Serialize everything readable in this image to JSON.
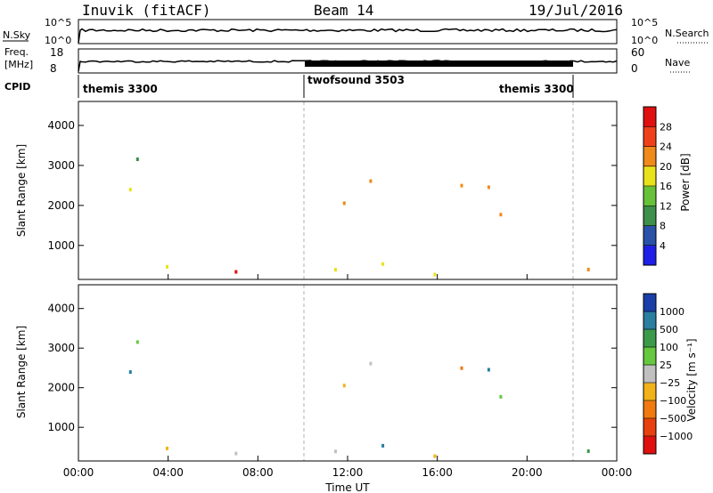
{
  "header": {
    "station": "Inuvik (fitACF)",
    "beam": "Beam 14",
    "date": "19/Jul/2016"
  },
  "top_panel": {
    "left_label": "N.Sky",
    "right_label": "N.Search",
    "left_ticks": [
      "10^5",
      "10^0"
    ],
    "right_ticks": [
      "10^5",
      "10^0"
    ]
  },
  "freq_panel": {
    "left_label_1": "Freq.",
    "left_label_2": "[MHz]",
    "right_label": "Nave",
    "left_ticks": [
      "18",
      "8"
    ],
    "right_ticks": [
      "60",
      "0"
    ]
  },
  "cpid": {
    "label": "CPID",
    "modes": [
      "themis 3300",
      "twofsound 3503",
      "themis 3300"
    ]
  },
  "chart_data": [
    {
      "type": "heatmap",
      "name": "power",
      "ylabel": "Slant Range [km]",
      "yticks": [
        1000,
        2000,
        3000,
        4000
      ],
      "ylim": [
        150,
        4600
      ],
      "xlim": [
        0,
        24
      ],
      "colorbar": {
        "label": "Power [dB]",
        "ticks": [
          "4",
          "8",
          "12",
          "16",
          "20",
          "24",
          "28"
        ],
        "colors": [
          "#1f1fe8",
          "#2a52a8",
          "#3d8f4a",
          "#67c23a",
          "#e8e21a",
          "#f08a1a",
          "#f0401a",
          "#e01010"
        ]
      }
    },
    {
      "type": "heatmap",
      "name": "velocity",
      "ylabel": "Slant Range [km]",
      "yticks": [
        1000,
        2000,
        3000,
        4000
      ],
      "ylim": [
        150,
        4600
      ],
      "xlim": [
        0,
        24
      ],
      "xticks": [
        "00:00",
        "04:00",
        "08:00",
        "12:00",
        "16:00",
        "20:00",
        "00:00"
      ],
      "xlabel": "Time UT",
      "colorbar": {
        "label": "Velocity [m s⁻¹]",
        "ticks": [
          "1000",
          "500",
          "100",
          "25",
          "−25",
          "−100",
          "−500",
          "−1000"
        ],
        "colors": [
          "#1a3fa8",
          "#2a7ea0",
          "#3d9a4a",
          "#66c840",
          "#c0c0c0",
          "#f2b21a",
          "#f07a10",
          "#e84010",
          "#e01010"
        ]
      }
    }
  ]
}
